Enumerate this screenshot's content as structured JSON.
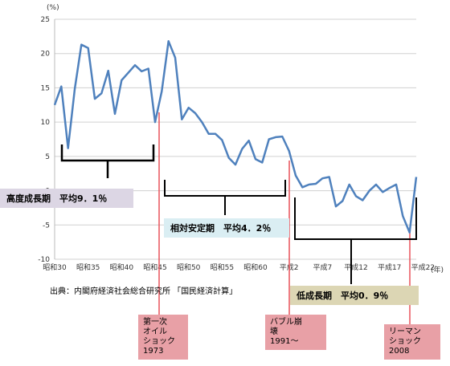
{
  "chart_data": {
    "type": "line",
    "unit_label": "(%)",
    "yticks": [
      25,
      20,
      15,
      10,
      5,
      0,
      -5,
      -10
    ],
    "ylim": [
      -10,
      25
    ],
    "x_unit_label": "(年)",
    "xtick_labels": [
      "昭和30",
      "昭和35",
      "昭和40",
      "昭和45",
      "昭和50",
      "昭和55",
      "昭和60",
      "平成2",
      "平成7",
      "平成12",
      "平成17",
      "平成22"
    ],
    "xtick_indices": [
      0,
      5,
      10,
      15,
      20,
      25,
      30,
      35,
      40,
      45,
      50,
      55
    ],
    "series": [
      {
        "color": "#4f81bd",
        "values": [
          12.5,
          15.2,
          6.2,
          14.8,
          21.3,
          20.8,
          13.4,
          14.2,
          17.5,
          11.2,
          16.1,
          17.2,
          18.3,
          17.4,
          17.8,
          10.0,
          14.5,
          21.8,
          19.4,
          10.4,
          12.1,
          11.3,
          10.0,
          8.3,
          8.3,
          7.4,
          4.8,
          3.8,
          6.1,
          7.3,
          4.6,
          4.1,
          7.5,
          7.8,
          7.9,
          5.8,
          2.2,
          0.5,
          0.9,
          1.0,
          1.8,
          2.0,
          -2.3,
          -1.5,
          0.9,
          -0.8,
          -1.4,
          0.0,
          0.9,
          -0.2,
          0.4,
          0.9,
          -3.7,
          -6.1,
          2.0
        ]
      }
    ]
  },
  "source": "出典：内閣府経済社会総合研究所 「国民経済計算」",
  "periods": {
    "high": "高度成長期　平均9．1％",
    "stable": "相対安定期　平均4．2％",
    "low": "低成長期　平均0．9％"
  },
  "events": {
    "oil": [
      "第一次",
      "オイル",
      "ショック",
      "1973"
    ],
    "bubble": [
      "バブル崩",
      "壊",
      "1991～"
    ],
    "lehman": [
      "リーマン",
      "ショック",
      "2008"
    ]
  },
  "colors": {
    "line": "#4f81bd",
    "marker": "#e8525a",
    "event_box": "#e8a0a6",
    "high_box": "#dcd6e4",
    "stable_box": "#daeef3",
    "low_box": "#dcd6b4"
  }
}
